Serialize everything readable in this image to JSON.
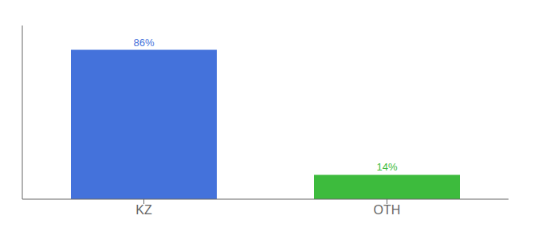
{
  "chart_data": {
    "type": "bar",
    "categories": [
      "KZ",
      "OTH"
    ],
    "values": [
      86,
      14
    ],
    "value_labels": [
      "86%",
      "14%"
    ],
    "colors": [
      "#4472db",
      "#3dbb3d"
    ],
    "ylim": [
      0,
      100
    ],
    "grid": false,
    "data_labels": true,
    "tick_labels": "x"
  }
}
